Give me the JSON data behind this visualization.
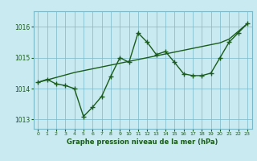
{
  "hours": [
    0,
    1,
    2,
    3,
    4,
    5,
    6,
    7,
    8,
    9,
    10,
    11,
    12,
    13,
    14,
    15,
    16,
    17,
    18,
    19,
    20,
    21,
    22,
    23
  ],
  "line1": [
    1014.2,
    1014.3,
    1014.15,
    1014.1,
    1014.0,
    1013.1,
    1013.4,
    1013.75,
    1014.4,
    1015.0,
    1014.85,
    1015.8,
    1015.5,
    1015.1,
    1015.2,
    1014.85,
    1014.48,
    1014.42,
    1014.42,
    1014.5,
    1015.0,
    1015.5,
    1015.8,
    1016.1
  ],
  "line2": [
    1014.2,
    1014.28,
    1014.36,
    1014.44,
    1014.52,
    1014.58,
    1014.64,
    1014.7,
    1014.76,
    1014.82,
    1014.88,
    1014.94,
    1015.0,
    1015.06,
    1015.12,
    1015.18,
    1015.24,
    1015.3,
    1015.36,
    1015.42,
    1015.48,
    1015.6,
    1015.85,
    1016.1
  ],
  "line_color": "#1a5c1a",
  "bg_color": "#c8eaf0",
  "grid_color": "#7ab8c8",
  "xlabel": "Graphe pression niveau de la mer (hPa)",
  "ylim": [
    1012.7,
    1016.5
  ],
  "xlim": [
    -0.5,
    23.5
  ],
  "yticks": [
    1013,
    1014,
    1015,
    1016
  ],
  "xticks": [
    0,
    1,
    2,
    3,
    4,
    5,
    6,
    7,
    8,
    9,
    10,
    11,
    12,
    13,
    14,
    15,
    16,
    17,
    18,
    19,
    20,
    21,
    22,
    23
  ]
}
